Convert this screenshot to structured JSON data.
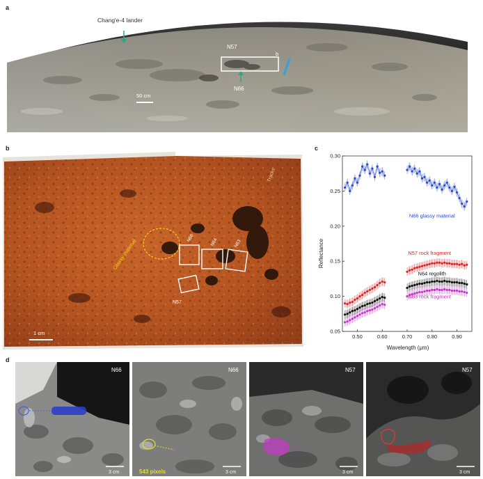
{
  "panels": {
    "a": {
      "label": "a",
      "lander_label": "Chang'e-4 lander",
      "n57": "N57",
      "n66": "N66",
      "box_b": "b",
      "scale": "50 cm"
    },
    "b": {
      "label": "b",
      "tracks": "Tracks",
      "glassy": "Glassy material",
      "n66": "N66",
      "n64": "N64",
      "n63": "N63",
      "n57": "N57",
      "scale": "1 cm"
    },
    "c": {
      "label": "c"
    },
    "d": {
      "label": "d",
      "panels": [
        {
          "title": "N66",
          "pixels": "",
          "scale": "3 cm"
        },
        {
          "title": "N66",
          "pixels": "543 pixels",
          "scale": "3 cm"
        },
        {
          "title": "N57",
          "pixels": "",
          "scale": "3 cm"
        },
        {
          "title": "N57",
          "pixels": "",
          "scale": "3 cm"
        }
      ]
    }
  },
  "colors": {
    "n66": "#2a4cc8",
    "n57": "#d62828",
    "n64": "#111111",
    "n63": "#c23bc4"
  },
  "chart_data": {
    "type": "line",
    "title": "",
    "xlabel": "Wavelength (μm)",
    "ylabel": "Reflectance",
    "xlim": [
      0.44,
      0.96
    ],
    "ylim": [
      0.05,
      0.3
    ],
    "xticks": [
      "0.50",
      "0.60",
      "0.70",
      "0.80",
      "0.90"
    ],
    "xtick_values": [
      0.5,
      0.6,
      0.7,
      0.8,
      0.9
    ],
    "yticks": [
      "0.05",
      "0.10",
      "0.15",
      "0.20",
      "0.25",
      "0.30"
    ],
    "ytick_values": [
      0.05,
      0.1,
      0.15,
      0.2,
      0.25,
      0.3
    ],
    "series": [
      {
        "name": "N66 glassy material",
        "color": "#2a4cc8",
        "segments": [
          {
            "x": [
              0.45,
              0.46,
              0.47,
              0.48,
              0.49,
              0.5,
              0.51,
              0.52,
              0.53,
              0.54,
              0.55,
              0.56,
              0.57,
              0.58,
              0.59,
              0.6,
              0.61
            ],
            "y": [
              0.255,
              0.262,
              0.25,
              0.258,
              0.268,
              0.262,
              0.272,
              0.285,
              0.28,
              0.288,
              0.275,
              0.282,
              0.27,
              0.285,
              0.276,
              0.278,
              0.272
            ]
          },
          {
            "x": [
              0.7,
              0.71,
              0.72,
              0.73,
              0.74,
              0.75,
              0.76,
              0.77,
              0.78,
              0.79,
              0.8,
              0.81,
              0.82,
              0.83,
              0.84,
              0.85,
              0.86,
              0.87,
              0.88,
              0.89,
              0.9,
              0.91,
              0.92,
              0.93,
              0.94
            ],
            "y": [
              0.28,
              0.285,
              0.278,
              0.282,
              0.275,
              0.278,
              0.268,
              0.27,
              0.262,
              0.265,
              0.258,
              0.262,
              0.255,
              0.26,
              0.252,
              0.258,
              0.262,
              0.255,
              0.25,
              0.256,
              0.248,
              0.24,
              0.232,
              0.228,
              0.235
            ]
          }
        ]
      },
      {
        "name": "N57 rock fragment",
        "color": "#d62828",
        "segments": [
          {
            "x": [
              0.45,
              0.46,
              0.47,
              0.48,
              0.49,
              0.5,
              0.51,
              0.52,
              0.53,
              0.54,
              0.55,
              0.56,
              0.57,
              0.58,
              0.59,
              0.6,
              0.61
            ],
            "y": [
              0.09,
              0.089,
              0.091,
              0.092,
              0.095,
              0.097,
              0.1,
              0.102,
              0.105,
              0.107,
              0.109,
              0.111,
              0.113,
              0.116,
              0.119,
              0.121,
              0.12
            ]
          },
          {
            "x": [
              0.7,
              0.71,
              0.72,
              0.73,
              0.74,
              0.75,
              0.76,
              0.77,
              0.78,
              0.79,
              0.8,
              0.81,
              0.82,
              0.83,
              0.84,
              0.85,
              0.86,
              0.87,
              0.88,
              0.89,
              0.9,
              0.91,
              0.92,
              0.93,
              0.94
            ],
            "y": [
              0.135,
              0.137,
              0.138,
              0.14,
              0.141,
              0.142,
              0.143,
              0.144,
              0.145,
              0.146,
              0.147,
              0.147,
              0.148,
              0.148,
              0.147,
              0.148,
              0.147,
              0.147,
              0.146,
              0.146,
              0.146,
              0.145,
              0.146,
              0.144,
              0.145
            ]
          }
        ]
      },
      {
        "name": "N64 regolith",
        "color": "#111111",
        "segments": [
          {
            "x": [
              0.45,
              0.46,
              0.47,
              0.48,
              0.49,
              0.5,
              0.51,
              0.52,
              0.53,
              0.54,
              0.55,
              0.56,
              0.57,
              0.58,
              0.59,
              0.6,
              0.61
            ],
            "y": [
              0.074,
              0.075,
              0.077,
              0.079,
              0.08,
              0.082,
              0.084,
              0.086,
              0.087,
              0.089,
              0.09,
              0.091,
              0.093,
              0.095,
              0.097,
              0.099,
              0.098
            ]
          },
          {
            "x": [
              0.7,
              0.71,
              0.72,
              0.73,
              0.74,
              0.75,
              0.76,
              0.77,
              0.78,
              0.79,
              0.8,
              0.81,
              0.82,
              0.83,
              0.84,
              0.85,
              0.86,
              0.87,
              0.88,
              0.89,
              0.9,
              0.91,
              0.92,
              0.93,
              0.94
            ],
            "y": [
              0.112,
              0.114,
              0.115,
              0.116,
              0.117,
              0.118,
              0.118,
              0.119,
              0.12,
              0.12,
              0.121,
              0.121,
              0.122,
              0.121,
              0.121,
              0.122,
              0.121,
              0.121,
              0.12,
              0.12,
              0.12,
              0.119,
              0.119,
              0.118,
              0.117
            ]
          }
        ]
      },
      {
        "name": "N63 rock fragment",
        "color": "#c23bc4",
        "segments": [
          {
            "x": [
              0.45,
              0.46,
              0.47,
              0.48,
              0.49,
              0.5,
              0.51,
              0.52,
              0.53,
              0.54,
              0.55,
              0.56,
              0.57,
              0.58,
              0.59,
              0.6,
              0.61
            ],
            "y": [
              0.063,
              0.064,
              0.066,
              0.068,
              0.07,
              0.072,
              0.074,
              0.076,
              0.077,
              0.079,
              0.08,
              0.081,
              0.083,
              0.085,
              0.087,
              0.089,
              0.088
            ]
          },
          {
            "x": [
              0.7,
              0.71,
              0.72,
              0.73,
              0.74,
              0.75,
              0.76,
              0.77,
              0.78,
              0.79,
              0.8,
              0.81,
              0.82,
              0.83,
              0.84,
              0.85,
              0.86,
              0.87,
              0.88,
              0.89,
              0.9,
              0.91,
              0.92,
              0.93,
              0.94
            ],
            "y": [
              0.1,
              0.102,
              0.103,
              0.104,
              0.105,
              0.106,
              0.106,
              0.107,
              0.108,
              0.108,
              0.109,
              0.109,
              0.11,
              0.109,
              0.109,
              0.11,
              0.109,
              0.109,
              0.108,
              0.108,
              0.108,
              0.107,
              0.107,
              0.106,
              0.105
            ]
          }
        ]
      }
    ]
  }
}
